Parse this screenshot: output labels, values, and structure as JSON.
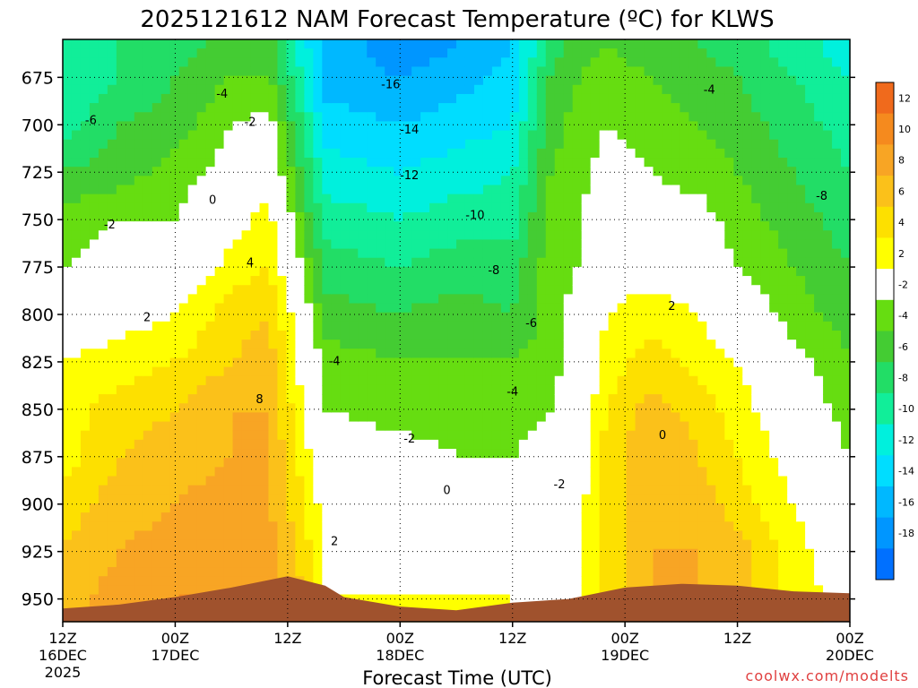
{
  "chart_data": {
    "type": "heatmap",
    "title": "2025121612 NAM Forecast Temperature (ºC) for KLWS",
    "xlabel": "Forecast Time (UTC)",
    "ylabel": "",
    "watermark": "coolwx.com/modelts",
    "y_axis": {
      "ticks": [
        "675",
        "700",
        "725",
        "750",
        "775",
        "800",
        "825",
        "850",
        "875",
        "900",
        "925",
        "950"
      ],
      "ylim": [
        962,
        655
      ],
      "scale": "pressure (hPa), increasing downward"
    },
    "x_axis": {
      "ticks": [
        {
          "hour": 0,
          "lines": [
            "12Z",
            "16DEC",
            "2025"
          ]
        },
        {
          "hour": 12,
          "lines": [
            "00Z",
            "17DEC"
          ]
        },
        {
          "hour": 24,
          "lines": [
            "12Z"
          ]
        },
        {
          "hour": 36,
          "lines": [
            "00Z",
            "18DEC"
          ]
        },
        {
          "hour": 48,
          "lines": [
            "12Z"
          ]
        },
        {
          "hour": 60,
          "lines": [
            "00Z",
            "19DEC"
          ]
        },
        {
          "hour": 72,
          "lines": [
            "12Z"
          ]
        },
        {
          "hour": 84,
          "lines": [
            "00Z",
            "20DEC"
          ]
        }
      ],
      "xlim": [
        0,
        84
      ],
      "units": "forecast hours from 2025-12-16 12Z"
    },
    "grid": true,
    "colorbar": {
      "position": "right",
      "bins": [
        {
          "label": "12",
          "color": "#f06a1c"
        },
        {
          "label": "10",
          "color": "#f58a1e"
        },
        {
          "label": "8",
          "color": "#f8a524"
        },
        {
          "label": "6",
          "color": "#fbc11a"
        },
        {
          "label": "4",
          "color": "#fde000"
        },
        {
          "label": "2",
          "color": "#ffff00"
        },
        {
          "label": "-2",
          "color": "#ffffff"
        },
        {
          "label": "-4",
          "color": "#66dd11"
        },
        {
          "label": "-6",
          "color": "#44cc33"
        },
        {
          "label": "-8",
          "color": "#22dd66"
        },
        {
          "label": "-10",
          "color": "#11ee99"
        },
        {
          "label": "-12",
          "color": "#00f0dd"
        },
        {
          "label": "-14",
          "color": "#00ddff"
        },
        {
          "label": "-16",
          "color": "#00b8ff"
        },
        {
          "label": "-18",
          "color": "#0096ff"
        },
        {
          "label": "",
          "color": "#0070ff"
        }
      ]
    },
    "ground_color": "#a0522d",
    "zero_isotherm_color": "#b0147c",
    "ground_pressure": [
      {
        "hour": 0,
        "p": 955
      },
      {
        "hour": 6,
        "p": 953
      },
      {
        "hour": 12,
        "p": 949
      },
      {
        "hour": 18,
        "p": 944
      },
      {
        "hour": 24,
        "p": 938
      },
      {
        "hour": 28,
        "p": 943
      },
      {
        "hour": 30,
        "p": 949
      },
      {
        "hour": 36,
        "p": 954
      },
      {
        "hour": 42,
        "p": 956
      },
      {
        "hour": 48,
        "p": 952
      },
      {
        "hour": 54,
        "p": 950
      },
      {
        "hour": 60,
        "p": 944
      },
      {
        "hour": 66,
        "p": 942
      },
      {
        "hour": 72,
        "p": 943
      },
      {
        "hour": 78,
        "p": 946
      },
      {
        "hour": 84,
        "p": 947
      }
    ],
    "temperature_profiles": {
      "levels_hPa": [
        660,
        675,
        700,
        725,
        750,
        775,
        800,
        825,
        850,
        875,
        900,
        925,
        950
      ],
      "columns": [
        {
          "hour": 0,
          "t": [
            -10,
            -10,
            -9,
            -6,
            -3,
            -2,
            0,
            2,
            3,
            3,
            5,
            6,
            7
          ]
        },
        {
          "hour": 6,
          "t": [
            -8,
            -8,
            -6,
            -5,
            -2,
            -1,
            1,
            3,
            5,
            6,
            7,
            8,
            9
          ]
        },
        {
          "hour": 12,
          "t": [
            -7,
            -6,
            -5,
            -3,
            -2,
            -1,
            2,
            4,
            6,
            7,
            8,
            9,
            10
          ]
        },
        {
          "hour": 18,
          "t": [
            -5,
            -4,
            -2,
            -1,
            1,
            3,
            5,
            6,
            8,
            8,
            9,
            9,
            10
          ]
        },
        {
          "hour": 22,
          "t": [
            -5,
            -4,
            -1,
            0,
            3,
            4,
            6,
            7,
            8,
            8,
            8,
            9,
            9
          ]
        },
        {
          "hour": 25,
          "t": [
            -10,
            -9,
            -7,
            -5,
            -3,
            -1,
            1,
            2,
            3,
            4,
            5,
            6,
            7
          ]
        },
        {
          "hour": 28,
          "t": [
            -15,
            -15,
            -13,
            -11,
            -9,
            -7,
            -5,
            -3,
            -2,
            0,
            1,
            2,
            2
          ]
        },
        {
          "hour": 36,
          "t": [
            -17,
            -16,
            -14,
            -12,
            -10,
            -8,
            -6,
            -4,
            -3,
            -1,
            0,
            1,
            2
          ]
        },
        {
          "hour": 42,
          "t": [
            -16,
            -15,
            -13,
            -11,
            -9,
            -7,
            -5,
            -4,
            -3,
            -2,
            0,
            1,
            2
          ]
        },
        {
          "hour": 48,
          "t": [
            -14,
            -13,
            -12,
            -10,
            -9,
            -7,
            -6,
            -4,
            -3,
            -2,
            -1,
            1,
            2
          ]
        },
        {
          "hour": 52,
          "t": [
            -7,
            -6,
            -5,
            -4,
            -3,
            -3,
            -3,
            -3,
            -2,
            -1,
            0,
            0,
            1
          ]
        },
        {
          "hour": 55,
          "t": [
            -5,
            -4,
            -3,
            -3,
            -2,
            -2,
            -1,
            -1,
            0,
            0,
            1,
            1,
            2
          ]
        },
        {
          "hour": 58,
          "t": [
            -4,
            -3,
            -2,
            -1,
            0,
            1,
            2,
            3,
            4,
            5,
            5,
            5,
            5
          ]
        },
        {
          "hour": 63,
          "t": [
            -5,
            -4,
            -3,
            -2,
            -1,
            1,
            3,
            5,
            7,
            8,
            8,
            8,
            8
          ]
        },
        {
          "hour": 68,
          "t": [
            -6,
            -5,
            -4,
            -3,
            -1,
            0,
            2,
            3,
            5,
            6,
            7,
            8,
            8
          ]
        },
        {
          "hour": 72,
          "t": [
            -7,
            -6,
            -5,
            -4,
            -3,
            -2,
            0,
            2,
            3,
            4,
            5,
            7,
            7
          ]
        },
        {
          "hour": 78,
          "t": [
            -9,
            -8,
            -7,
            -6,
            -5,
            -4,
            -3,
            -1,
            0,
            1,
            2,
            3,
            3
          ]
        },
        {
          "hour": 84,
          "t": [
            -11,
            -10,
            -9,
            -8,
            -7,
            -6,
            -5,
            -4,
            -3,
            -2,
            -1,
            0,
            1
          ]
        }
      ]
    },
    "contour_labels": [
      {
        "text": "-16",
        "hour": 35,
        "p": 679
      },
      {
        "text": "-14",
        "hour": 37,
        "p": 703
      },
      {
        "text": "-12",
        "hour": 37,
        "p": 727
      },
      {
        "text": "-10",
        "hour": 44,
        "p": 748
      },
      {
        "text": "-8",
        "hour": 46,
        "p": 777
      },
      {
        "text": "-6",
        "hour": 50,
        "p": 805
      },
      {
        "text": "-4",
        "hour": 29,
        "p": 825
      },
      {
        "text": "-4",
        "hour": 48,
        "p": 841
      },
      {
        "text": "-2",
        "hour": 37,
        "p": 866
      },
      {
        "text": "-2",
        "hour": 53,
        "p": 890
      },
      {
        "text": "0",
        "hour": 41,
        "p": 893
      },
      {
        "text": "2",
        "hour": 29,
        "p": 920
      },
      {
        "text": "2",
        "hour": 9,
        "p": 802
      },
      {
        "text": "4",
        "hour": 20,
        "p": 773
      },
      {
        "text": "8",
        "hour": 21,
        "p": 845
      },
      {
        "text": "0",
        "hour": 16,
        "p": 740
      },
      {
        "text": "-2",
        "hour": 20,
        "p": 699
      },
      {
        "text": "-4",
        "hour": 17,
        "p": 684
      },
      {
        "text": "-6",
        "hour": 3,
        "p": 698
      },
      {
        "text": "-2",
        "hour": 5,
        "p": 753
      },
      {
        "text": "2",
        "hour": 65,
        "p": 796
      },
      {
        "text": "-4",
        "hour": 69,
        "p": 682
      },
      {
        "text": "-8",
        "hour": 81,
        "p": 738
      },
      {
        "text": "0",
        "hour": 64,
        "p": 864
      }
    ]
  }
}
